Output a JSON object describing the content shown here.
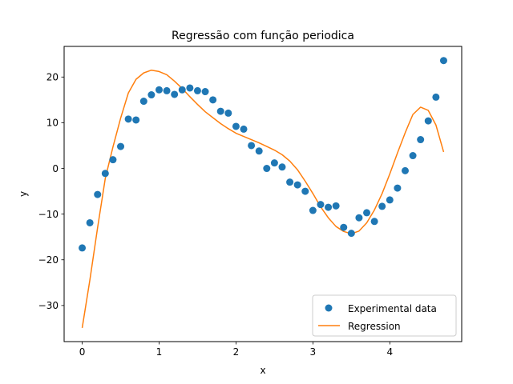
{
  "chart_data": {
    "type": "scatter",
    "title": "Regressão com função periodica",
    "xlabel": "x",
    "ylabel": "y",
    "xlim": [
      -0.235,
      4.935
    ],
    "ylim": [
      -37.9,
      26.7
    ],
    "xticks": [
      0,
      1,
      2,
      3,
      4
    ],
    "yticks": [
      -30,
      -20,
      -10,
      0,
      10,
      20
    ],
    "grid": false,
    "legend_position": "lower right",
    "series": [
      {
        "name": "Experimental data",
        "kind": "scatter",
        "color": "#1f77b4",
        "x": [
          0,
          0.1,
          0.2,
          0.3,
          0.4,
          0.5,
          0.6,
          0.7,
          0.8,
          0.9,
          1.0,
          1.1,
          1.2,
          1.3,
          1.4,
          1.5,
          1.6,
          1.7,
          1.8,
          1.9,
          2.0,
          2.1,
          2.2,
          2.3,
          2.4,
          2.5,
          2.6,
          2.7,
          2.8,
          2.9,
          3.0,
          3.1,
          3.2,
          3.3,
          3.4,
          3.5,
          3.6,
          3.7,
          3.8,
          3.9,
          4.0,
          4.1,
          4.2,
          4.3,
          4.4,
          4.5,
          4.6,
          4.7
        ],
        "y": [
          -17.4,
          -11.9,
          -5.7,
          -1.1,
          1.9,
          4.8,
          10.8,
          10.6,
          14.7,
          16.1,
          17.2,
          17.0,
          16.2,
          17.2,
          17.6,
          17.0,
          16.8,
          15.0,
          12.5,
          12.1,
          9.2,
          8.6,
          5.0,
          3.8,
          0.0,
          1.2,
          0.3,
          -3.0,
          -3.6,
          -5.0,
          -9.2,
          -7.9,
          -8.5,
          -8.2,
          -12.9,
          -14.2,
          -10.8,
          -9.7,
          -11.6,
          -8.3,
          -6.9,
          -4.3,
          -0.5,
          2.8,
          6.3,
          10.4,
          15.6,
          23.6
        ]
      },
      {
        "name": "Regression",
        "kind": "line",
        "color": "#ff7f0e",
        "x": [
          0,
          0.1,
          0.2,
          0.3,
          0.4,
          0.5,
          0.6,
          0.7,
          0.8,
          0.9,
          1.0,
          1.1,
          1.2,
          1.3,
          1.4,
          1.5,
          1.6,
          1.7,
          1.8,
          1.9,
          2.0,
          2.1,
          2.2,
          2.3,
          2.4,
          2.5,
          2.6,
          2.7,
          2.8,
          2.9,
          3.0,
          3.1,
          3.2,
          3.3,
          3.4,
          3.5,
          3.6,
          3.7,
          3.8,
          3.9,
          4.0,
          4.1,
          4.2,
          4.3,
          4.4,
          4.5,
          4.6,
          4.7
        ],
        "y": [
          -34.9,
          -24.4,
          -13.0,
          -2.2,
          4.7,
          11.0,
          16.5,
          19.5,
          20.9,
          21.5,
          21.2,
          20.5,
          19.1,
          17.5,
          15.7,
          14.0,
          12.4,
          11.1,
          9.8,
          8.7,
          7.7,
          7.0,
          6.3,
          5.6,
          4.8,
          4.0,
          3.0,
          1.6,
          -0.3,
          -2.8,
          -5.5,
          -8.4,
          -10.8,
          -12.7,
          -13.8,
          -14.3,
          -13.7,
          -11.9,
          -9.1,
          -5.5,
          -1.2,
          3.4,
          7.8,
          11.8,
          13.4,
          12.7,
          9.5,
          3.6
        ]
      }
    ]
  }
}
